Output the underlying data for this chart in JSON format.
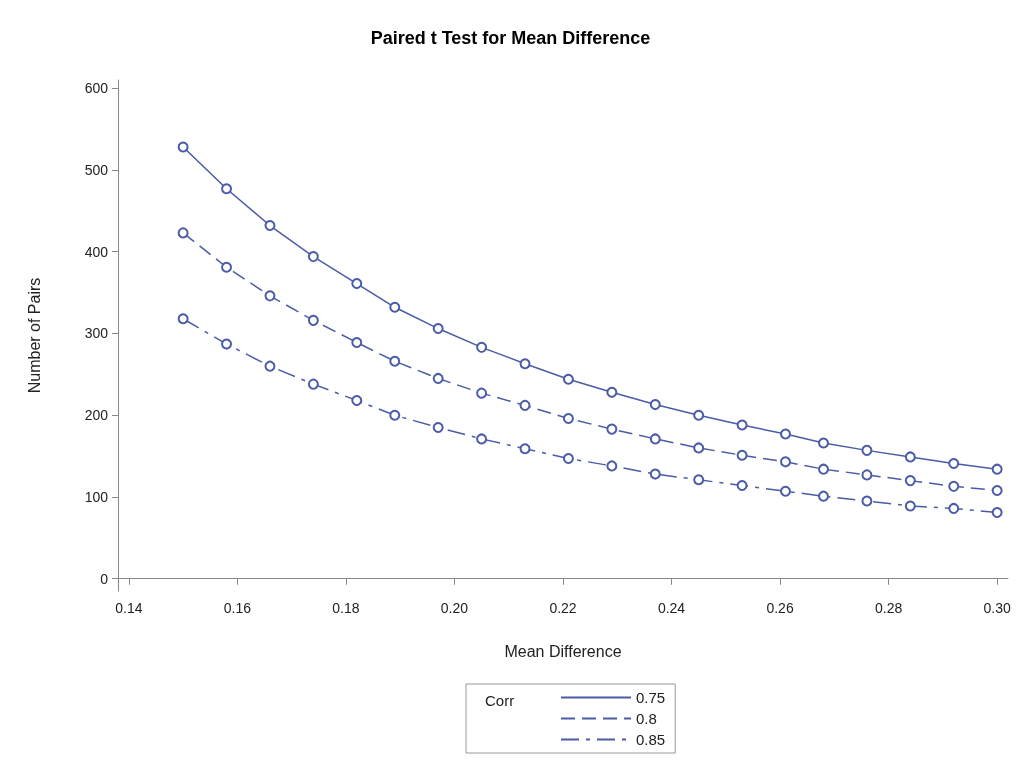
{
  "chart_data": {
    "type": "line",
    "title": "Paired t Test for Mean Difference",
    "xlabel": "Mean Difference",
    "ylabel": "Number of Pairs",
    "legend_title": "Corr",
    "x": [
      0.15,
      0.158,
      0.166,
      0.174,
      0.182,
      0.189,
      0.197,
      0.205,
      0.213,
      0.221,
      0.229,
      0.237,
      0.245,
      0.253,
      0.261,
      0.268,
      0.276,
      0.284,
      0.292,
      0.3
    ],
    "series": [
      {
        "name": "0.75",
        "color": "#4a5ba8",
        "line_style": "solid",
        "values": [
          528,
          477,
          432,
          394,
          361,
          332,
          306,
          283,
          263,
          244,
          228,
          213,
          200,
          188,
          177,
          166,
          157,
          149,
          141,
          134
        ]
      },
      {
        "name": "0.8",
        "color": "#4a5ba8",
        "line_style": "dashed",
        "values": [
          423,
          381,
          346,
          316,
          289,
          266,
          245,
          227,
          212,
          196,
          183,
          171,
          160,
          151,
          143,
          134,
          127,
          120,
          113,
          108
        ]
      },
      {
        "name": "0.85",
        "color": "#4a5ba8",
        "line_style": "dashdot",
        "values": [
          318,
          287,
          260,
          238,
          218,
          200,
          185,
          171,
          159,
          147,
          138,
          128,
          121,
          114,
          107,
          101,
          95,
          89,
          86,
          81
        ]
      }
    ],
    "xlim": [
      0.138,
      0.302
    ],
    "xticks": [
      {
        "value": 0.14,
        "label": "0.14"
      },
      {
        "value": 0.16,
        "label": "0.16"
      },
      {
        "value": 0.18,
        "label": "0.18"
      },
      {
        "value": 0.2,
        "label": "0.20"
      },
      {
        "value": 0.22,
        "label": "0.22"
      },
      {
        "value": 0.24,
        "label": "0.24"
      },
      {
        "value": 0.26,
        "label": "0.26"
      },
      {
        "value": 0.28,
        "label": "0.28"
      },
      {
        "value": 0.3,
        "label": "0.30"
      }
    ],
    "ylim": [
      -15,
      610
    ],
    "yticks": [
      0,
      100,
      200,
      300,
      400,
      500,
      600
    ],
    "marker": "circle",
    "grid": false,
    "legend": "bottom"
  }
}
